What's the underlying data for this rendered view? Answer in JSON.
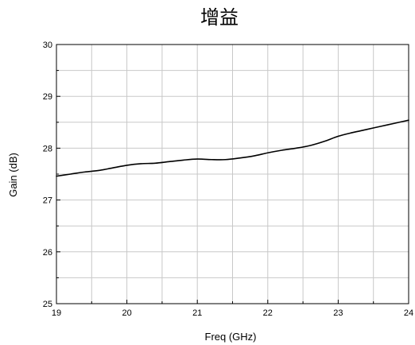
{
  "chart_data": {
    "type": "line",
    "title": "增益",
    "xlabel": "Freq (GHz)",
    "ylabel": "Gain (dB)",
    "xlim": [
      19,
      24
    ],
    "ylim": [
      25,
      30
    ],
    "x_ticks": [
      "19",
      "20",
      "21",
      "22",
      "23",
      "24"
    ],
    "y_ticks": [
      "25",
      "26",
      "27",
      "28",
      "29",
      "30"
    ],
    "grid": true,
    "line_color": "#000000",
    "grid_color": "#c8c8c8",
    "series": [
      {
        "x": [
          19.0,
          19.2,
          19.4,
          19.6,
          19.8,
          20.0,
          20.2,
          20.4,
          20.6,
          20.8,
          21.0,
          21.2,
          21.4,
          21.6,
          21.8,
          22.0,
          22.2,
          22.4,
          22.6,
          22.8,
          23.0,
          23.2,
          23.4,
          23.6,
          23.8,
          24.0
        ],
        "y": [
          27.46,
          27.5,
          27.54,
          27.57,
          27.62,
          27.67,
          27.7,
          27.71,
          27.74,
          27.77,
          27.79,
          27.78,
          27.78,
          27.81,
          27.85,
          27.91,
          27.96,
          28.0,
          28.05,
          28.13,
          28.23,
          28.3,
          28.36,
          28.42,
          28.48,
          28.54
        ]
      }
    ]
  }
}
